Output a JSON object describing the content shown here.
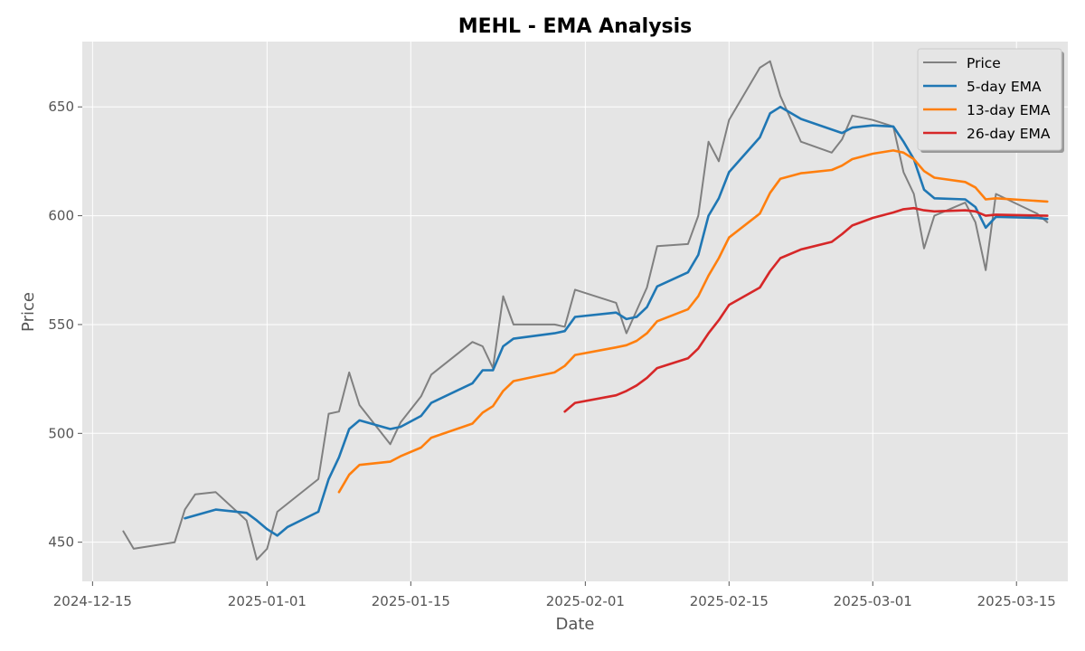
{
  "chart_data": {
    "type": "line",
    "title": "MEHL - EMA Analysis",
    "xlabel": "Date",
    "ylabel": "Price",
    "x_axis_type": "date",
    "xlim": [
      "2024-12-14",
      "2025-03-20"
    ],
    "ylim": [
      432,
      680
    ],
    "x_ticks": [
      "2024-12-15",
      "2025-01-01",
      "2025-01-15",
      "2025-02-01",
      "2025-02-15",
      "2025-03-01",
      "2025-03-15"
    ],
    "y_ticks": [
      450,
      500,
      550,
      600,
      650
    ],
    "grid": true,
    "legend_position": "top-right",
    "series": [
      {
        "name": "Price",
        "color": "#808080",
        "points": [
          [
            "2024-12-18",
            455
          ],
          [
            "2024-12-19",
            447
          ],
          [
            "2024-12-23",
            450
          ],
          [
            "2024-12-24",
            465
          ],
          [
            "2024-12-25",
            472
          ],
          [
            "2024-12-27",
            473
          ],
          [
            "2024-12-30",
            460
          ],
          [
            "2024-12-31",
            442
          ],
          [
            "2025-01-01",
            447
          ],
          [
            "2025-01-02",
            464
          ],
          [
            "2025-01-06",
            479
          ],
          [
            "2025-01-07",
            509
          ],
          [
            "2025-01-08",
            510
          ],
          [
            "2025-01-09",
            528
          ],
          [
            "2025-01-10",
            513
          ],
          [
            "2025-01-13",
            495
          ],
          [
            "2025-01-14",
            505
          ],
          [
            "2025-01-16",
            517
          ],
          [
            "2025-01-17",
            527
          ],
          [
            "2025-01-21",
            542
          ],
          [
            "2025-01-22",
            540
          ],
          [
            "2025-01-23",
            530
          ],
          [
            "2025-01-24",
            563
          ],
          [
            "2025-01-25",
            550
          ],
          [
            "2025-01-29",
            550
          ],
          [
            "2025-01-30",
            549
          ],
          [
            "2025-01-31",
            566
          ],
          [
            "2025-02-04",
            560
          ],
          [
            "2025-02-05",
            546
          ],
          [
            "2025-02-07",
            567
          ],
          [
            "2025-02-08",
            586
          ],
          [
            "2025-02-11",
            587
          ],
          [
            "2025-02-12",
            600
          ],
          [
            "2025-02-13",
            634
          ],
          [
            "2025-02-14",
            625
          ],
          [
            "2025-02-15",
            644
          ],
          [
            "2025-02-18",
            668
          ],
          [
            "2025-02-19",
            671
          ],
          [
            "2025-02-20",
            655
          ],
          [
            "2025-02-22",
            634
          ],
          [
            "2025-02-25",
            629
          ],
          [
            "2025-02-26",
            635
          ],
          [
            "2025-02-27",
            646
          ],
          [
            "2025-03-01",
            644
          ],
          [
            "2025-03-03",
            641
          ],
          [
            "2025-03-04",
            620
          ],
          [
            "2025-03-05",
            610
          ],
          [
            "2025-03-06",
            585
          ],
          [
            "2025-03-07",
            600
          ],
          [
            "2025-03-10",
            606
          ],
          [
            "2025-03-11",
            597
          ],
          [
            "2025-03-12",
            575
          ],
          [
            "2025-03-13",
            610
          ],
          [
            "2025-03-17",
            601
          ],
          [
            "2025-03-18",
            597
          ]
        ]
      },
      {
        "name": "5-day EMA",
        "color": "#1f77b4",
        "points": [
          [
            "2024-12-24",
            461
          ],
          [
            "2024-12-27",
            465
          ],
          [
            "2024-12-30",
            463.5
          ],
          [
            "2024-12-31",
            460
          ],
          [
            "2025-01-01",
            456
          ],
          [
            "2025-01-02",
            453
          ],
          [
            "2025-01-03",
            457
          ],
          [
            "2025-01-06",
            464
          ],
          [
            "2025-01-07",
            479
          ],
          [
            "2025-01-08",
            489
          ],
          [
            "2025-01-09",
            502
          ],
          [
            "2025-01-10",
            506
          ],
          [
            "2025-01-13",
            502
          ],
          [
            "2025-01-14",
            503
          ],
          [
            "2025-01-16",
            508
          ],
          [
            "2025-01-17",
            514
          ],
          [
            "2025-01-21",
            523
          ],
          [
            "2025-01-22",
            529
          ],
          [
            "2025-01-23",
            529
          ],
          [
            "2025-01-24",
            540
          ],
          [
            "2025-01-25",
            543.5
          ],
          [
            "2025-01-29",
            546
          ],
          [
            "2025-01-30",
            547
          ],
          [
            "2025-01-31",
            553.5
          ],
          [
            "2025-02-04",
            555.5
          ],
          [
            "2025-02-05",
            552.5
          ],
          [
            "2025-02-06",
            553.5
          ],
          [
            "2025-02-07",
            558
          ],
          [
            "2025-02-08",
            567.5
          ],
          [
            "2025-02-11",
            574
          ],
          [
            "2025-02-12",
            582
          ],
          [
            "2025-02-13",
            600
          ],
          [
            "2025-02-14",
            608
          ],
          [
            "2025-02-15",
            620
          ],
          [
            "2025-02-18",
            636
          ],
          [
            "2025-02-19",
            647
          ],
          [
            "2025-02-20",
            650
          ],
          [
            "2025-02-22",
            644.5
          ],
          [
            "2025-02-26",
            638
          ],
          [
            "2025-02-27",
            640.5
          ],
          [
            "2025-03-01",
            641.5
          ],
          [
            "2025-03-03",
            641
          ],
          [
            "2025-03-04",
            634
          ],
          [
            "2025-03-05",
            626
          ],
          [
            "2025-03-06",
            612
          ],
          [
            "2025-03-07",
            608
          ],
          [
            "2025-03-10",
            607.5
          ],
          [
            "2025-03-11",
            604
          ],
          [
            "2025-03-12",
            594.5
          ],
          [
            "2025-03-13",
            599.5
          ],
          [
            "2025-03-17",
            599
          ],
          [
            "2025-03-18",
            598.5
          ]
        ]
      },
      {
        "name": "13-day EMA",
        "color": "#ff7f0e",
        "points": [
          [
            "2025-01-08",
            473
          ],
          [
            "2025-01-09",
            481
          ],
          [
            "2025-01-10",
            485.5
          ],
          [
            "2025-01-13",
            487
          ],
          [
            "2025-01-14",
            489.5
          ],
          [
            "2025-01-16",
            493.5
          ],
          [
            "2025-01-17",
            498
          ],
          [
            "2025-01-21",
            504.5
          ],
          [
            "2025-01-22",
            509.5
          ],
          [
            "2025-01-23",
            512.5
          ],
          [
            "2025-01-24",
            519.5
          ],
          [
            "2025-01-25",
            524
          ],
          [
            "2025-01-29",
            528
          ],
          [
            "2025-01-30",
            531
          ],
          [
            "2025-01-31",
            536
          ],
          [
            "2025-02-04",
            539.5
          ],
          [
            "2025-02-05",
            540.5
          ],
          [
            "2025-02-06",
            542.5
          ],
          [
            "2025-02-07",
            546
          ],
          [
            "2025-02-08",
            551.5
          ],
          [
            "2025-02-11",
            557
          ],
          [
            "2025-02-12",
            563
          ],
          [
            "2025-02-13",
            572.5
          ],
          [
            "2025-02-14",
            580.5
          ],
          [
            "2025-02-15",
            590
          ],
          [
            "2025-02-18",
            601
          ],
          [
            "2025-02-19",
            610.5
          ],
          [
            "2025-02-20",
            617
          ],
          [
            "2025-02-22",
            619.5
          ],
          [
            "2025-02-25",
            621
          ],
          [
            "2025-02-26",
            623
          ],
          [
            "2025-02-27",
            626
          ],
          [
            "2025-03-01",
            628.5
          ],
          [
            "2025-03-03",
            630
          ],
          [
            "2025-03-04",
            629
          ],
          [
            "2025-03-05",
            626
          ],
          [
            "2025-03-06",
            620.5
          ],
          [
            "2025-03-07",
            617.5
          ],
          [
            "2025-03-10",
            615.5
          ],
          [
            "2025-03-11",
            613
          ],
          [
            "2025-03-12",
            607.5
          ],
          [
            "2025-03-13",
            608
          ],
          [
            "2025-03-18",
            606.5
          ]
        ]
      },
      {
        "name": "26-day EMA",
        "color": "#d62728",
        "points": [
          [
            "2025-01-30",
            510
          ],
          [
            "2025-01-31",
            514
          ],
          [
            "2025-02-04",
            517.5
          ],
          [
            "2025-02-05",
            519.5
          ],
          [
            "2025-02-06",
            522
          ],
          [
            "2025-02-07",
            525.5
          ],
          [
            "2025-02-08",
            530
          ],
          [
            "2025-02-11",
            534.5
          ],
          [
            "2025-02-12",
            539
          ],
          [
            "2025-02-13",
            546
          ],
          [
            "2025-02-14",
            552
          ],
          [
            "2025-02-15",
            559
          ],
          [
            "2025-02-18",
            567
          ],
          [
            "2025-02-19",
            574.5
          ],
          [
            "2025-02-20",
            580.5
          ],
          [
            "2025-02-22",
            584.5
          ],
          [
            "2025-02-25",
            588
          ],
          [
            "2025-02-26",
            591.5
          ],
          [
            "2025-02-27",
            595.5
          ],
          [
            "2025-03-01",
            599
          ],
          [
            "2025-03-03",
            601.5
          ],
          [
            "2025-03-04",
            603
          ],
          [
            "2025-03-05",
            603.5
          ],
          [
            "2025-03-06",
            602.5
          ],
          [
            "2025-03-07",
            602
          ],
          [
            "2025-03-10",
            602.5
          ],
          [
            "2025-03-11",
            602
          ],
          [
            "2025-03-12",
            600
          ],
          [
            "2025-03-13",
            600.5
          ],
          [
            "2025-03-18",
            600
          ]
        ]
      }
    ]
  }
}
